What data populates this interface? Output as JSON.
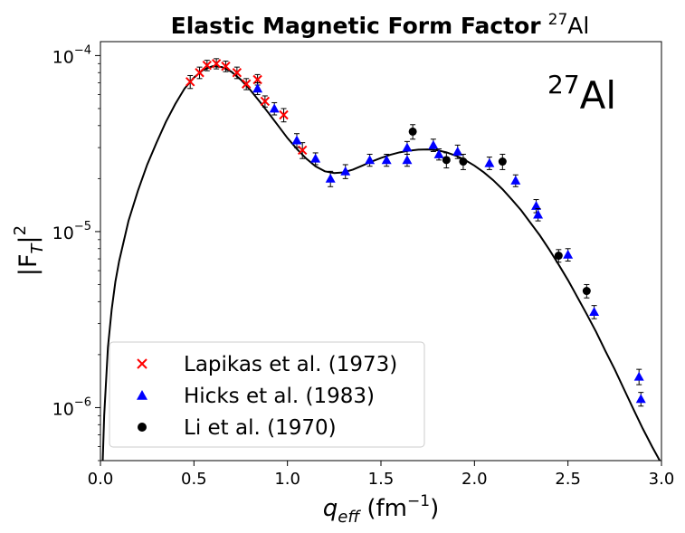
{
  "chart_data": {
    "type": "scatter",
    "title": "Elastic Magnetic Form Factor",
    "title_nucleus_mass": "27",
    "title_nucleus_symbol": "Al",
    "xlabel_var": "q",
    "xlabel_sub": "eff",
    "xlabel_unit": "(fm",
    "xlabel_unit_exp": "−1",
    "xlabel_unit_close": ")",
    "ylabel_base": "|F",
    "ylabel_sub": "T",
    "ylabel_close": "|",
    "ylabel_exp": "2",
    "yscale": "log",
    "xlim": [
      0.0,
      3.0
    ],
    "ylim": [
      5e-07,
      0.00012
    ],
    "xticks": [
      0.0,
      0.5,
      1.0,
      1.5,
      2.0,
      2.5,
      3.0
    ],
    "xtick_labels": [
      "0.0",
      "0.5",
      "1.0",
      "1.5",
      "2.0",
      "2.5",
      "3.0"
    ],
    "yticks": [
      {
        "value": 0.0001,
        "base": "10",
        "exp": "−4"
      },
      {
        "value": 1e-05,
        "base": "10",
        "exp": "−5"
      },
      {
        "value": 1e-06,
        "base": "10",
        "exp": "−6"
      }
    ],
    "annotation": {
      "mass": "27",
      "symbol": "Al"
    },
    "legend_position": "lower-left",
    "fit_curve": {
      "name": "fit",
      "color": "#000000",
      "points": [
        [
          0.01,
          4.2e-07
        ],
        [
          0.02,
          9e-07
        ],
        [
          0.04,
          2.2e-06
        ],
        [
          0.06,
          3.6e-06
        ],
        [
          0.08,
          5.2e-06
        ],
        [
          0.1,
          6.8e-06
        ],
        [
          0.15,
          1.15e-05
        ],
        [
          0.2,
          1.7e-05
        ],
        [
          0.25,
          2.4e-05
        ],
        [
          0.3,
          3.2e-05
        ],
        [
          0.35,
          4.2e-05
        ],
        [
          0.4,
          5.3e-05
        ],
        [
          0.45,
          6.5e-05
        ],
        [
          0.5,
          7.5e-05
        ],
        [
          0.55,
          8.3e-05
        ],
        [
          0.6,
          8.7e-05
        ],
        [
          0.65,
          8.6e-05
        ],
        [
          0.7,
          8.1e-05
        ],
        [
          0.75,
          7.3e-05
        ],
        [
          0.8,
          6.4e-05
        ],
        [
          0.85,
          5.5e-05
        ],
        [
          0.9,
          4.7e-05
        ],
        [
          0.95,
          4e-05
        ],
        [
          1.0,
          3.4e-05
        ],
        [
          1.05,
          2.95e-05
        ],
        [
          1.1,
          2.6e-05
        ],
        [
          1.15,
          2.35e-05
        ],
        [
          1.2,
          2.2e-05
        ],
        [
          1.25,
          2.15e-05
        ],
        [
          1.3,
          2.17e-05
        ],
        [
          1.35,
          2.25e-05
        ],
        [
          1.4,
          2.37e-05
        ],
        [
          1.45,
          2.5e-05
        ],
        [
          1.5,
          2.62e-05
        ],
        [
          1.55,
          2.73e-05
        ],
        [
          1.6,
          2.82e-05
        ],
        [
          1.65,
          2.88e-05
        ],
        [
          1.7,
          2.92e-05
        ],
        [
          1.75,
          2.93e-05
        ],
        [
          1.8,
          2.9e-05
        ],
        [
          1.85,
          2.82e-05
        ],
        [
          1.9,
          2.7e-05
        ],
        [
          1.95,
          2.55e-05
        ],
        [
          2.0,
          2.37e-05
        ],
        [
          2.05,
          2.17e-05
        ],
        [
          2.1,
          1.96e-05
        ],
        [
          2.15,
          1.74e-05
        ],
        [
          2.2,
          1.52e-05
        ],
        [
          2.25,
          1.32e-05
        ],
        [
          2.3,
          1.12e-05
        ],
        [
          2.35,
          9.5e-06
        ],
        [
          2.4,
          7.9e-06
        ],
        [
          2.45,
          6.5e-06
        ],
        [
          2.5,
          5.3e-06
        ],
        [
          2.55,
          4.25e-06
        ],
        [
          2.6,
          3.4e-06
        ],
        [
          2.65,
          2.7e-06
        ],
        [
          2.7,
          2.1e-06
        ],
        [
          2.75,
          1.65e-06
        ],
        [
          2.8,
          1.27e-06
        ],
        [
          2.85,
          9.8e-07
        ],
        [
          2.9,
          7.6e-07
        ],
        [
          2.95,
          6e-07
        ],
        [
          3.0,
          4.8e-07
        ]
      ]
    },
    "series": [
      {
        "name": "Lapikas et al. (1973)",
        "marker": "x",
        "color": "#ff0000",
        "points": [
          {
            "x": 0.48,
            "y": 7.1e-05,
            "err": 6e-06
          },
          {
            "x": 0.53,
            "y": 8e-05,
            "err": 6e-06
          },
          {
            "x": 0.57,
            "y": 8.8e-05,
            "err": 6e-06
          },
          {
            "x": 0.62,
            "y": 9e-05,
            "err": 6e-06
          },
          {
            "x": 0.67,
            "y": 8.7e-05,
            "err": 6e-06
          },
          {
            "x": 0.73,
            "y": 8e-05,
            "err": 6e-06
          },
          {
            "x": 0.78,
            "y": 6.9e-05,
            "err": 5e-06
          },
          {
            "x": 0.84,
            "y": 7.3e-05,
            "err": 5e-06
          },
          {
            "x": 0.88,
            "y": 5.5e-05,
            "err": 4e-06
          },
          {
            "x": 0.98,
            "y": 4.6e-05,
            "err": 4e-06
          },
          {
            "x": 1.08,
            "y": 2.9e-05,
            "err": 3e-06
          }
        ]
      },
      {
        "name": "Hicks et al. (1983)",
        "marker": "^",
        "color": "#0000ff",
        "points": [
          {
            "x": 0.84,
            "y": 6.5e-05,
            "err": 5e-06
          },
          {
            "x": 0.93,
            "y": 5e-05,
            "err": 4e-06
          },
          {
            "x": 1.05,
            "y": 3.3e-05,
            "err": 3e-06
          },
          {
            "x": 1.15,
            "y": 2.6e-05,
            "err": 2e-06
          },
          {
            "x": 1.23,
            "y": 2e-05,
            "err": 2e-06
          },
          {
            "x": 1.31,
            "y": 2.2e-05,
            "err": 2e-06
          },
          {
            "x": 1.44,
            "y": 2.55e-05,
            "err": 2e-06
          },
          {
            "x": 1.53,
            "y": 2.55e-05,
            "err": 2e-06
          },
          {
            "x": 1.64,
            "y": 3e-05,
            "err": 2.5e-06
          },
          {
            "x": 1.64,
            "y": 2.55e-05,
            "err": 2e-06
          },
          {
            "x": 1.78,
            "y": 3.1e-05,
            "err": 2.5e-06
          },
          {
            "x": 1.81,
            "y": 2.75e-05,
            "err": 2e-06
          },
          {
            "x": 1.91,
            "y": 2.85e-05,
            "err": 2.5e-06
          },
          {
            "x": 2.08,
            "y": 2.45e-05,
            "err": 2e-06
          },
          {
            "x": 2.22,
            "y": 1.95e-05,
            "err": 1.5e-06
          },
          {
            "x": 2.33,
            "y": 1.4e-05,
            "err": 1.2e-06
          },
          {
            "x": 2.34,
            "y": 1.25e-05,
            "err": 1e-06
          },
          {
            "x": 2.5,
            "y": 7.4e-06,
            "err": 6e-07
          },
          {
            "x": 2.64,
            "y": 3.5e-06,
            "err": 3e-07
          },
          {
            "x": 2.88,
            "y": 1.5e-06,
            "err": 1.5e-07
          },
          {
            "x": 2.89,
            "y": 1.12e-06,
            "err": 1e-07
          }
        ]
      },
      {
        "name": "Li et al. (1970)",
        "marker": "o",
        "color": "#000000",
        "points": [
          {
            "x": 1.67,
            "y": 3.7e-05,
            "err": 3.5e-06
          },
          {
            "x": 1.85,
            "y": 2.55e-05,
            "err": 2.5e-06
          },
          {
            "x": 1.94,
            "y": 2.5e-05,
            "err": 2.5e-06
          },
          {
            "x": 2.15,
            "y": 2.5e-05,
            "err": 2.5e-06
          },
          {
            "x": 2.45,
            "y": 7.3e-06,
            "err": 6e-07
          },
          {
            "x": 2.6,
            "y": 4.6e-06,
            "err": 4e-07
          }
        ]
      }
    ]
  }
}
